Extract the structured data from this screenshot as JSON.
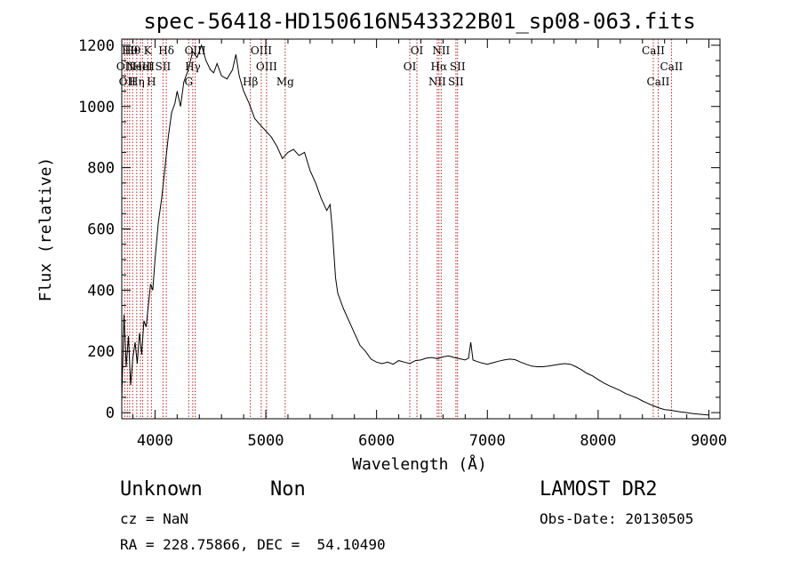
{
  "chart_data": {
    "type": "line",
    "title": "spec-56418-HD150616N543322B01_sp08-063.fits",
    "xlabel": "Wavelength (Å)",
    "ylabel": "Flux (relative)",
    "xlim": [
      3700,
      9100
    ],
    "ylim": [
      -20,
      1220
    ],
    "xticks": [
      4000,
      5000,
      6000,
      7000,
      8000,
      9000
    ],
    "yticks": [
      0,
      200,
      400,
      600,
      800,
      1000,
      1200
    ],
    "grid": false,
    "series": [
      {
        "x": [
          3700,
          3720,
          3740,
          3760,
          3780,
          3800,
          3820,
          3840,
          3860,
          3880,
          3900,
          3920,
          3940,
          3960,
          3980,
          4000,
          4030,
          4060,
          4090,
          4120,
          4150,
          4180,
          4200,
          4230,
          4260,
          4300,
          4340,
          4380,
          4420,
          4460,
          4500,
          4530,
          4560,
          4600,
          4650,
          4700,
          4730,
          4760,
          4800,
          4850,
          4900,
          4950,
          5000,
          5050,
          5100,
          5150,
          5200,
          5250,
          5300,
          5350,
          5400,
          5450,
          5500,
          5550,
          5580,
          5600,
          5630,
          5650,
          5700,
          5750,
          5800,
          5850,
          5900,
          5950,
          6000,
          6050,
          6100,
          6150,
          6200,
          6250,
          6300,
          6350,
          6400,
          6450,
          6500,
          6550,
          6600,
          6650,
          6700,
          6750,
          6800,
          6830,
          6850,
          6870,
          6900,
          6950,
          7000,
          7050,
          7100,
          7150,
          7200,
          7250,
          7300,
          7350,
          7400,
          7450,
          7500,
          7550,
          7600,
          7650,
          7700,
          7750,
          7800,
          7850,
          7900,
          7950,
          8000,
          8050,
          8100,
          8150,
          8200,
          8250,
          8300,
          8350,
          8400,
          8450,
          8500,
          8550,
          8600,
          8650,
          8700,
          8750,
          8800,
          8850,
          8900,
          8950,
          9000
        ],
        "y": [
          40,
          320,
          150,
          250,
          90,
          180,
          230,
          160,
          260,
          190,
          300,
          280,
          350,
          420,
          400,
          500,
          620,
          700,
          800,
          900,
          980,
          1010,
          1050,
          1000,
          1080,
          1120,
          1180,
          1160,
          1200,
          1150,
          1120,
          1110,
          1140,
          1100,
          1090,
          1120,
          1170,
          1100,
          1050,
          1010,
          960,
          940,
          920,
          900,
          870,
          830,
          850,
          860,
          840,
          850,
          790,
          750,
          700,
          660,
          680,
          600,
          440,
          390,
          340,
          300,
          260,
          220,
          200,
          175,
          165,
          160,
          165,
          158,
          170,
          165,
          160,
          170,
          172,
          178,
          180,
          176,
          182,
          185,
          180,
          176,
          172,
          178,
          230,
          172,
          168,
          162,
          158,
          163,
          168,
          172,
          175,
          173,
          165,
          158,
          152,
          150,
          150,
          152,
          155,
          158,
          160,
          158,
          150,
          140,
          128,
          120,
          108,
          97,
          88,
          80,
          72,
          62,
          55,
          48,
          38,
          30,
          22,
          15,
          10,
          8,
          5,
          2,
          0,
          -3,
          -5,
          -6,
          -8
        ]
      }
    ],
    "lines": [
      {
        "x": 3727,
        "label": "OII",
        "row": 2
      },
      {
        "x": 3750,
        "label": "OII",
        "row": 3
      },
      {
        "x": 3771,
        "label": "Hθ",
        "row": 1
      },
      {
        "x": 3798,
        "label": "Hθ",
        "row": 1
      },
      {
        "x": 3835,
        "label": "Hη",
        "row": 3
      },
      {
        "x": 3869,
        "label": "NeIII",
        "row": 2
      },
      {
        "x": 3889,
        "label": "HeI",
        "row": 2
      },
      {
        "x": 3934,
        "label": "K",
        "row": 1
      },
      {
        "x": 3968,
        "label": "H",
        "row": 3
      },
      {
        "x": 4072,
        "label": "SII",
        "row": 2
      },
      {
        "x": 4102,
        "label": "Hδ",
        "row": 1
      },
      {
        "x": 4304,
        "label": "G",
        "row": 3
      },
      {
        "x": 4341,
        "label": "Hγ",
        "row": 2
      },
      {
        "x": 4363,
        "label": "OIII",
        "row": 1
      },
      {
        "x": 4861,
        "label": "Hβ",
        "row": 3
      },
      {
        "x": 4959,
        "label": "OIII",
        "row": 1
      },
      {
        "x": 5007,
        "label": "OIII",
        "row": 2
      },
      {
        "x": 5175,
        "label": "Mg",
        "row": 3
      },
      {
        "x": 6300,
        "label": "OI",
        "row": 2
      },
      {
        "x": 6364,
        "label": "OI",
        "row": 1
      },
      {
        "x": 6548,
        "label": "NII",
        "row": 3
      },
      {
        "x": 6563,
        "label": "Hα",
        "row": 2
      },
      {
        "x": 6583,
        "label": "NII",
        "row": 1
      },
      {
        "x": 6716,
        "label": "SII",
        "row": 3
      },
      {
        "x": 6731,
        "label": "SII",
        "row": 2
      },
      {
        "x": 8498,
        "label": "CaII",
        "row": 1
      },
      {
        "x": 8542,
        "label": "CaII",
        "row": 3
      },
      {
        "x": 8662,
        "label": "CaII",
        "row": 2
      }
    ]
  },
  "info": {
    "object_class": "Unknown",
    "object_subclass": "Non",
    "survey": "LAMOST DR2",
    "cz": "cz = NaN",
    "obs_date": "Obs-Date: 20130505",
    "coords": "RA = 228.75866, DEC =  54.10490"
  },
  "colors": {
    "spectrum": "#000000",
    "line_markers": "#b22222"
  }
}
